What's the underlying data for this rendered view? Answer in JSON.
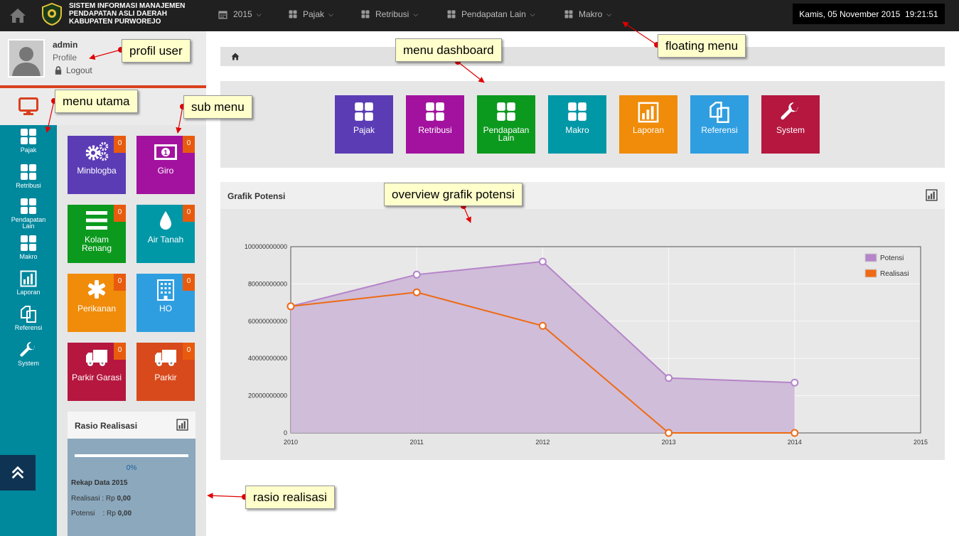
{
  "header": {
    "title_line1": "SISTEM INFORMASI MANAJEMEN",
    "title_line2": "PENDAPATAN ASLI DAERAH",
    "title_line3": "KABUPATEN PURWOREJO",
    "menus": [
      {
        "label": "2015",
        "icon": "calendar-icon"
      },
      {
        "label": "Pajak",
        "icon": "grid-icon"
      },
      {
        "label": "Retribusi",
        "icon": "grid-icon"
      },
      {
        "label": "Pendapatan Lain",
        "icon": "grid-icon"
      },
      {
        "label": "Makro",
        "icon": "grid-icon"
      }
    ],
    "datetime": "Kamis, 05 November 2015  19:21:51"
  },
  "user": {
    "name": "admin",
    "profile_label": "Profile",
    "logout_label": "Logout"
  },
  "sidebar": {
    "items": [
      {
        "label": "Pajak",
        "icon": "grid-icon"
      },
      {
        "label": "Retribusi",
        "icon": "grid-icon"
      },
      {
        "label": "Pendapatan Lain",
        "icon": "grid-icon"
      },
      {
        "label": "Makro",
        "icon": "grid-icon"
      },
      {
        "label": "Laporan",
        "icon": "bar-chart-icon"
      },
      {
        "label": "Referensi",
        "icon": "copy-icon"
      },
      {
        "label": "System",
        "icon": "wrench-icon"
      }
    ]
  },
  "submenu": {
    "tiles": [
      {
        "label": "Minblogba",
        "badge": "0",
        "color": "#5b3cb5",
        "icon": "gears-icon"
      },
      {
        "label": "Giro",
        "badge": "0",
        "color": "#a3129f",
        "icon": "money-icon"
      },
      {
        "label": "Kolam Renang",
        "badge": "0",
        "color": "#0b9a1e",
        "icon": "list-icon"
      },
      {
        "label": "Air Tanah",
        "badge": "0",
        "color": "#0097a7",
        "icon": "drop-icon"
      },
      {
        "label": "Perikanan",
        "badge": "0",
        "color": "#f08c09",
        "icon": "asterisk-icon"
      },
      {
        "label": "HO",
        "badge": "0",
        "color": "#2f9ee0",
        "icon": "building-icon"
      },
      {
        "label": "Parkir Garasi",
        "badge": "0",
        "color": "#b5173f",
        "icon": "truck-icon"
      },
      {
        "label": "Parkir",
        "badge": "0",
        "color": "#d84a1b",
        "icon": "truck-icon"
      }
    ]
  },
  "rasio": {
    "title": "Rasio Realisasi",
    "progress": 0,
    "percent_label": "0%",
    "rekap": "Rekap Data 2015",
    "realisasi_label": "Realisasi : Rp ",
    "realisasi_value": "0,00",
    "potensi_label": "Potensi    : Rp ",
    "potensi_value": "0,00"
  },
  "dashboard": {
    "tiles": [
      {
        "label": "Pajak",
        "color": "#5b3cb5",
        "icon": "grid-icon"
      },
      {
        "label": "Retribusi",
        "color": "#a3129f",
        "icon": "grid-icon"
      },
      {
        "label": "Pendapatan Lain",
        "color": "#0b9a1e",
        "icon": "grid-icon"
      },
      {
        "label": "Makro",
        "color": "#0097a7",
        "icon": "grid-icon"
      },
      {
        "label": "Laporan",
        "color": "#f08c09",
        "icon": "bar-chart-icon"
      },
      {
        "label": "Referensi",
        "color": "#2f9ee0",
        "icon": "copy-icon"
      },
      {
        "label": "System",
        "color": "#b5173f",
        "icon": "wrench-icon"
      }
    ]
  },
  "chart_panel_title": "Grafik Potensi",
  "chart_data": {
    "type": "area",
    "x": [
      2010,
      2011,
      2012,
      2013,
      2014
    ],
    "x_ticks": [
      "2010",
      "2011",
      "2012",
      "2013",
      "2014",
      "2015"
    ],
    "xlim": [
      2010,
      2015
    ],
    "ylim": [
      0,
      100000000000
    ],
    "y_ticks": [
      "0",
      "20000000000",
      "40000000000",
      "60000000000",
      "80000000000",
      "100000000000"
    ],
    "grid": true,
    "legend_position": "top-right",
    "series": [
      {
        "name": "Potensi",
        "color": "#b584c9",
        "fill": "#cdb8d7",
        "values": [
          68000000000,
          85000000000,
          92000000000,
          29500000000,
          27000000000
        ]
      },
      {
        "name": "Realisasi",
        "color": "#ee6a14",
        "values": [
          68000000000,
          75500000000,
          57500000000,
          0,
          0
        ]
      }
    ]
  },
  "annotations": {
    "profil_user": "profil user",
    "menu_utama": "menu utama",
    "sub_menu": "sub menu",
    "menu_dashboard": "menu dashboard",
    "floating_menu": "floating menu",
    "overview_grafik": "overview grafik potensi",
    "rasio_realisasi": "rasio realisasi"
  }
}
